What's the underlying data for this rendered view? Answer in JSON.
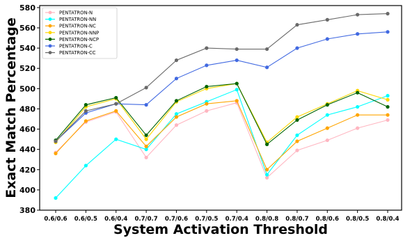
{
  "chart_data": {
    "type": "line",
    "xlabel": "System Activation Threshold",
    "ylabel": "Exact Match Percentage",
    "categories": [
      "0.6/0.6",
      "0.6/0.5",
      "0.6/0.4",
      "0.7/0.7",
      "0.7/0.6",
      "0.7/0.5",
      "0.7/0.4",
      "0.8/0.8",
      "0.8/0.7",
      "0.8/0.6",
      "0.8/0.5",
      "0.8/0.4"
    ],
    "ylim": [
      380,
      582
    ],
    "yticks": [
      380,
      400,
      420,
      440,
      460,
      480,
      500,
      520,
      540,
      560,
      580
    ],
    "grid": false,
    "legend_position": "top-left",
    "series": [
      {
        "name": "PENTATRON-N",
        "color": "#ffb6c1",
        "values": [
          437,
          467,
          477,
          432,
          464,
          478,
          486,
          412,
          439,
          449,
          461,
          469
        ]
      },
      {
        "name": "PENTATRON-NN",
        "color": "#00ffff",
        "values": [
          392,
          424,
          450,
          440,
          475,
          487,
          499,
          415,
          454,
          474,
          482,
          493
        ]
      },
      {
        "name": "PENTATRON-NC",
        "color": "#ffa500",
        "values": [
          436,
          468,
          478,
          443,
          472,
          485,
          488,
          420,
          448,
          461,
          474,
          474
        ]
      },
      {
        "name": "PENTATRON-NNP",
        "color": "#ffd700",
        "values": [
          447,
          482,
          490,
          450,
          487,
          500,
          505,
          447,
          472,
          485,
          498,
          489
        ]
      },
      {
        "name": "PENTATRON-NCP",
        "color": "#006400",
        "values": [
          449,
          484,
          491,
          454,
          488,
          502,
          505,
          445,
          469,
          484,
          496,
          482
        ]
      },
      {
        "name": "PENTATRON-C",
        "color": "#4169e1",
        "values": [
          448,
          476,
          485,
          484,
          510,
          523,
          528,
          521,
          540,
          549,
          554,
          556
        ]
      },
      {
        "name": "PENTATRON-CC",
        "color": "#696969",
        "values": [
          448,
          478,
          485,
          501,
          528,
          540,
          539,
          539,
          563,
          568,
          573,
          574
        ]
      }
    ]
  }
}
